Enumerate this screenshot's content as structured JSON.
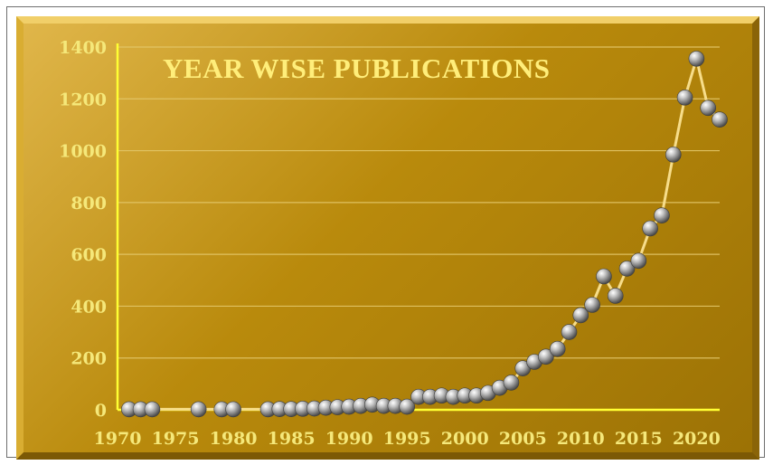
{
  "chart_data": {
    "type": "line",
    "title": "YEAR WISE PUBLICATIONS",
    "xlabel": "",
    "ylabel": "",
    "xlim": [
      1970,
      2022
    ],
    "ylim": [
      0,
      1400
    ],
    "x_ticks": [
      1970,
      1975,
      1980,
      1985,
      1990,
      1995,
      2000,
      2005,
      2010,
      2015,
      2020
    ],
    "y_ticks": [
      0,
      200,
      400,
      600,
      800,
      1000,
      1200,
      1400
    ],
    "grid": true,
    "legend": "none",
    "series": [
      {
        "points": [
          [
            1971,
            2
          ],
          [
            1972,
            2
          ],
          [
            1973,
            2
          ],
          [
            1977,
            2
          ],
          [
            1979,
            2
          ],
          [
            1980,
            2
          ],
          [
            1983,
            2
          ],
          [
            1984,
            3
          ],
          [
            1985,
            3
          ],
          [
            1986,
            4
          ],
          [
            1987,
            5
          ],
          [
            1988,
            8
          ],
          [
            1989,
            10
          ],
          [
            1990,
            12
          ],
          [
            1991,
            15
          ],
          [
            1992,
            20
          ],
          [
            1993,
            15
          ],
          [
            1994,
            15
          ],
          [
            1995,
            12
          ],
          [
            1996,
            50
          ],
          [
            1997,
            50
          ],
          [
            1998,
            55
          ],
          [
            1999,
            50
          ],
          [
            2000,
            55
          ],
          [
            2001,
            55
          ],
          [
            2002,
            65
          ],
          [
            2003,
            85
          ],
          [
            2004,
            105
          ],
          [
            2005,
            160
          ],
          [
            2006,
            185
          ],
          [
            2007,
            205
          ],
          [
            2008,
            235
          ],
          [
            2009,
            300
          ],
          [
            2010,
            365
          ],
          [
            2011,
            405
          ],
          [
            2012,
            515
          ],
          [
            2013,
            440
          ],
          [
            2014,
            545
          ],
          [
            2015,
            575
          ],
          [
            2016,
            700
          ],
          [
            2017,
            750
          ],
          [
            2018,
            985
          ],
          [
            2019,
            1205
          ],
          [
            2020,
            1355
          ],
          [
            2021,
            1165
          ],
          [
            2022,
            1120
          ]
        ]
      }
    ]
  },
  "colors": {
    "line": "#f7dd8a",
    "axis": "#ffff33",
    "grid": "#e3c76a",
    "marker": "#8a8a8a",
    "tick_text": "#f5e87a",
    "title_text": "#ffee7a",
    "background": "#c29210"
  }
}
